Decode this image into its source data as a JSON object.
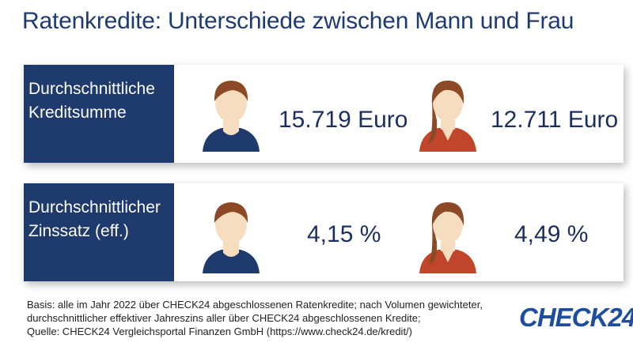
{
  "title": "Ratenkredite: Unterschiede zwischen Mann und Frau",
  "chart_data": {
    "type": "table",
    "columns": [
      "Mann",
      "Frau"
    ],
    "rows": [
      {
        "label_line1": "Durchschnittliche",
        "label_line2": "Kreditsumme",
        "male": "15.719 Euro",
        "female": "12.711  Euro"
      },
      {
        "label_line1": "Durchschnittlicher",
        "label_line2": "Zinssatz  (eff.)",
        "male": "4,15 %",
        "female": "4,49 %"
      }
    ]
  },
  "icons": {
    "male": "man-icon",
    "female": "woman-icon"
  },
  "colors": {
    "primary": "#1f3a6c",
    "title": "#1e3a72",
    "male_shirt": "#1f3a6c",
    "female_shirt": "#c1452a",
    "hair": "#8b4a25",
    "skin": "#f7ddc0"
  },
  "footer": {
    "line1": "Basis: alle im Jahr 2022 über CHECK24 abgeschlossenen Ratenkredite; nach Volumen gewichteter,",
    "line2": "durchschnittlicher effektiver Jahreszins aller über CHECK24 abgeschlossenen Kredite;",
    "line3": "Quelle: CHECK24 Vergleichsportal Finanzen GmbH (https://www.check24.de/kredit/)"
  },
  "logo": "CHECK24"
}
